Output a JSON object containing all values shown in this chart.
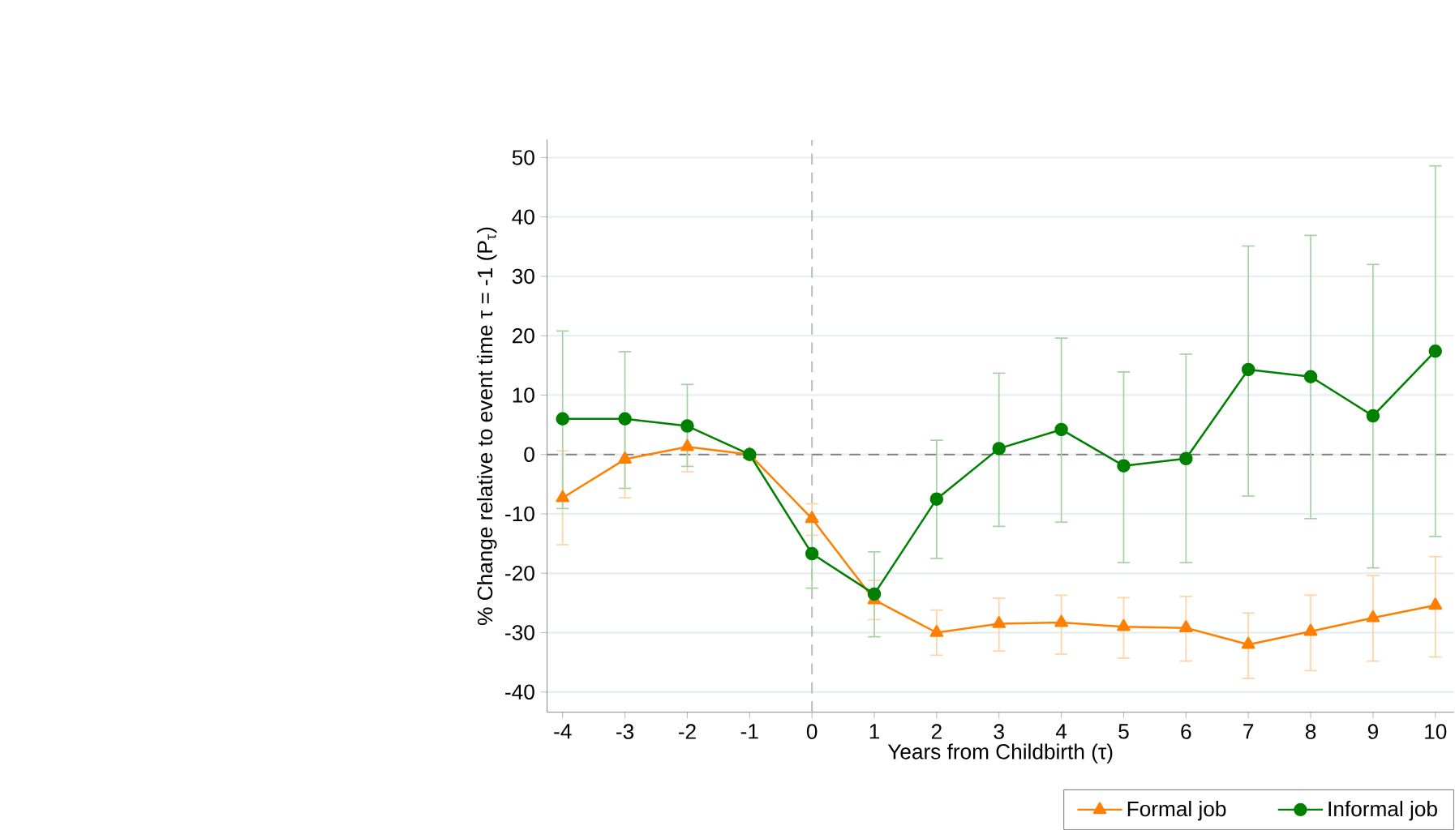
{
  "chart_data": {
    "type": "line",
    "xlabel": "Years from Childbirth (τ)",
    "ylabel": "% Change relative to event time τ = -1 (P$_{τ}$)",
    "x": [
      -4,
      -3,
      -2,
      -1,
      0,
      1,
      2,
      3,
      4,
      5,
      6,
      7,
      8,
      9,
      10
    ],
    "xlim": [
      -4.25,
      10.3
    ],
    "xticks": [
      -4,
      -3,
      -2,
      -1,
      0,
      1,
      2,
      3,
      4,
      5,
      6,
      7,
      8,
      9,
      10
    ],
    "ylim": [
      -43.4,
      53
    ],
    "yticks": [
      -40,
      -30,
      -20,
      -10,
      0,
      10,
      20,
      30,
      40,
      50
    ],
    "grid": "y",
    "legend": "bottom",
    "line_style": "solid",
    "ref_lines": [
      {
        "axis": "y",
        "value": 0,
        "color": "#808080",
        "line_style": "dashed"
      },
      {
        "axis": "x",
        "value": 0,
        "color": "#c0c0c0",
        "line_style": "dashed"
      }
    ],
    "series": [
      {
        "name": "Formal job",
        "color": "#ff8000",
        "marker": "triangle",
        "values": [
          -7.3,
          -0.8,
          1.3,
          0,
          -10.8,
          -24.5,
          -30.0,
          -28.5,
          -28.3,
          -29.0,
          -29.2,
          -32.0,
          -29.8,
          -27.5,
          -25.4
        ],
        "errors": [
          [
            -15.2,
            0.6
          ],
          [
            -7.3,
            5.7
          ],
          [
            -2.9,
            5.5
          ],
          null,
          [
            -13.6,
            -8.3
          ],
          [
            -27.8,
            -21.2
          ],
          [
            -33.8,
            -26.2
          ],
          [
            -33.1,
            -24.2
          ],
          [
            -33.6,
            -23.7
          ],
          [
            -34.3,
            -24.1
          ],
          [
            -34.8,
            -23.9
          ],
          [
            -37.7,
            -26.7
          ],
          [
            -36.4,
            -23.7
          ],
          [
            -34.8,
            -20.4
          ],
          [
            -34.1,
            -17.2
          ]
        ]
      },
      {
        "name": "Informal job",
        "color": "#008000",
        "marker": "circle",
        "values": [
          6.0,
          6.0,
          4.8,
          0,
          -16.7,
          -23.5,
          -7.5,
          1.0,
          4.2,
          -1.9,
          -0.7,
          14.3,
          13.1,
          6.5,
          17.4
        ],
        "errors": [
          [
            -9.1,
            20.8
          ],
          [
            -5.7,
            17.3
          ],
          [
            -2.0,
            11.8
          ],
          null,
          [
            -22.5,
            -10.9
          ],
          [
            -30.7,
            -16.4
          ],
          [
            -17.5,
            2.4
          ],
          [
            -12.1,
            13.7
          ],
          [
            -11.4,
            19.6
          ],
          [
            -18.2,
            13.9
          ],
          [
            -18.2,
            16.9
          ],
          [
            -7.0,
            35.1
          ],
          [
            -10.8,
            36.9
          ],
          [
            -19.1,
            32.0
          ],
          [
            -13.8,
            48.6
          ]
        ]
      }
    ]
  }
}
